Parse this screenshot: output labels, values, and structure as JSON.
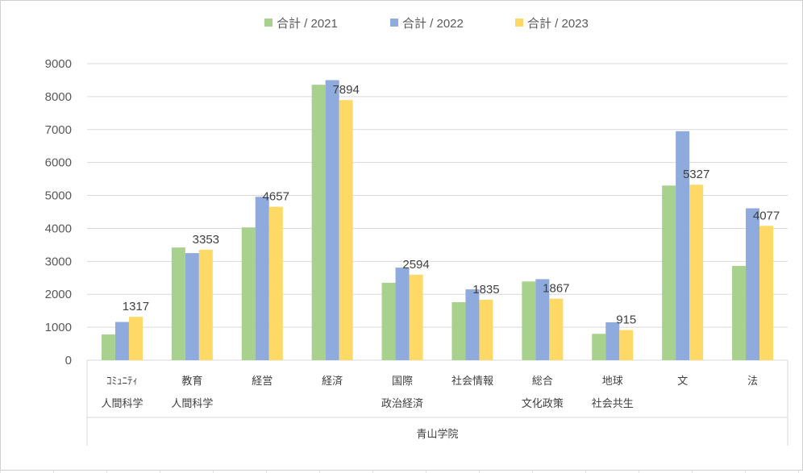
{
  "chart_data": {
    "type": "bar",
    "legend": "top",
    "grid": true,
    "ylim": [
      0,
      9000
    ],
    "yticks": [
      0,
      1000,
      2000,
      3000,
      4000,
      5000,
      6000,
      7000,
      8000,
      9000
    ],
    "ytick_labels": [
      "0",
      "1000",
      "2000",
      "3000",
      "4000",
      "5000",
      "6000",
      "7000",
      "8000",
      "9000"
    ],
    "group_label": "青山学院",
    "categories": [
      [
        "ｺﾐｭﾆﾃｨ",
        "人間科学"
      ],
      [
        "教育",
        "人間科学"
      ],
      [
        "経営"
      ],
      [
        "経済"
      ],
      [
        "国際",
        "政治経済"
      ],
      [
        "社会情報"
      ],
      [
        "総合",
        "文化政策"
      ],
      [
        "地球",
        "社会共生"
      ],
      [
        "文"
      ],
      [
        "法"
      ]
    ],
    "series": [
      {
        "name": "合計 / 2021",
        "color": "#a9d18e",
        "values": [
          780,
          3420,
          4030,
          8360,
          2350,
          1760,
          2390,
          800,
          5300,
          2860
        ]
      },
      {
        "name": "合計 / 2022",
        "color": "#8faadc",
        "values": [
          1160,
          3250,
          4960,
          8500,
          2810,
          2150,
          2460,
          1150,
          6950,
          4610
        ]
      },
      {
        "name": "合計 / 2023",
        "color": "#ffd966",
        "values": [
          1317,
          3353,
          4657,
          7894,
          2594,
          1835,
          1867,
          915,
          5327,
          4077
        ]
      }
    ],
    "data_labels": [
      "1317",
      "3353",
      "4657",
      "7894",
      "2594",
      "1835",
      "1867",
      "915",
      "5327",
      "4077"
    ]
  }
}
